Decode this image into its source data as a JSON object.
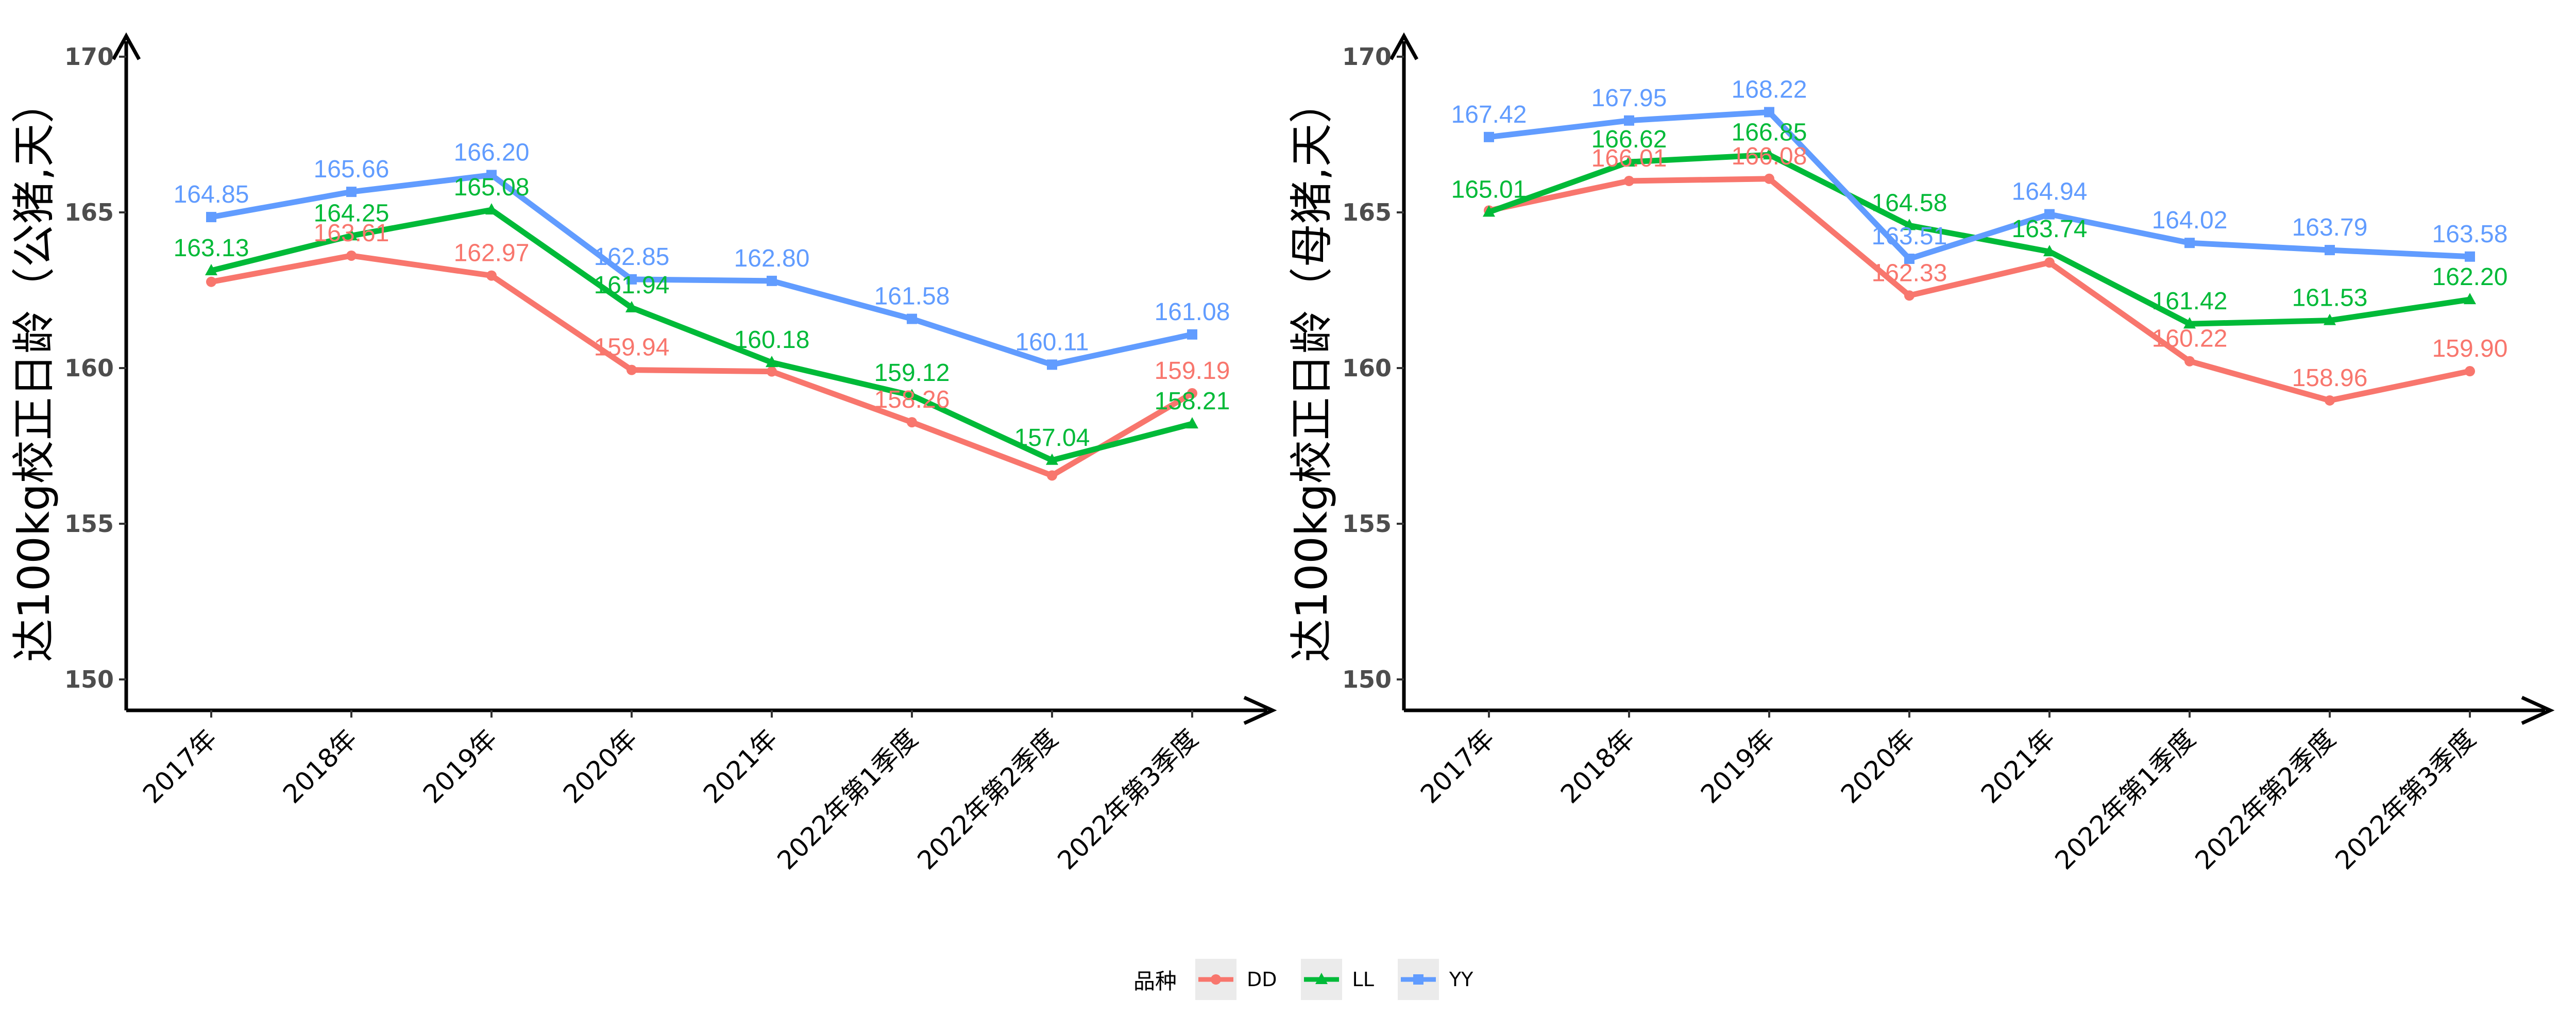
{
  "chart_data": [
    {
      "type": "line",
      "ylabel": "达100kg校正日龄（公猪,天）",
      "xlabel": "",
      "categories": [
        "2017年",
        "2018年",
        "2019年",
        "2020年",
        "2021年",
        "2022年第1季度",
        "2022年第2季度",
        "2022年第3季度"
      ],
      "ylim": [
        149,
        171
      ],
      "yticks": [
        150,
        155,
        160,
        165,
        170
      ],
      "series": [
        {
          "name": "DD",
          "values": [
            162.77,
            163.61,
            162.97,
            159.94,
            159.89,
            158.26,
            156.55,
            159.19
          ],
          "labels": [
            "",
            "163.61",
            "162.97",
            "159.94",
            "",
            "158.26",
            "",
            "159.19"
          ]
        },
        {
          "name": "LL",
          "values": [
            163.13,
            164.25,
            165.08,
            161.94,
            160.18,
            159.12,
            157.04,
            158.21
          ],
          "labels": [
            "163.13",
            "164.25",
            "165.08",
            "161.94",
            "160.18",
            "159.12",
            "157.04",
            "158.21"
          ]
        },
        {
          "name": "YY",
          "values": [
            164.85,
            165.66,
            166.2,
            162.85,
            162.8,
            161.58,
            160.11,
            161.08
          ],
          "labels": [
            "164.85",
            "165.66",
            "166.20",
            "162.85",
            "162.80",
            "161.58",
            "160.11",
            "161.08"
          ]
        }
      ]
    },
    {
      "type": "line",
      "ylabel": "达100kg校正日龄（母猪,天）",
      "xlabel": "",
      "categories": [
        "2017年",
        "2018年",
        "2019年",
        "2020年",
        "2021年",
        "2022年第1季度",
        "2022年第2季度",
        "2022年第3季度"
      ],
      "ylim": [
        149,
        171
      ],
      "yticks": [
        150,
        155,
        160,
        165,
        170
      ],
      "series": [
        {
          "name": "DD",
          "values": [
            165.06,
            166.01,
            166.08,
            162.33,
            163.39,
            160.22,
            158.96,
            159.9
          ],
          "labels": [
            "",
            "166.01",
            "166.08",
            "162.33",
            "",
            "160.22",
            "158.96",
            "159.90"
          ]
        },
        {
          "name": "LL",
          "values": [
            165.01,
            166.62,
            166.85,
            164.58,
            163.74,
            161.42,
            161.53,
            162.2
          ],
          "labels": [
            "165.01",
            "166.62",
            "166.85",
            "164.58",
            "163.74",
            "161.42",
            "161.53",
            "162.20"
          ]
        },
        {
          "name": "YY",
          "values": [
            167.42,
            167.95,
            168.22,
            163.51,
            164.94,
            164.02,
            163.79,
            163.58
          ],
          "labels": [
            "167.42",
            "167.95",
            "168.22",
            "163.51",
            "164.94",
            "164.02",
            "163.79",
            "163.58"
          ]
        }
      ]
    }
  ],
  "legend": {
    "title": "品种",
    "placement": "bottom",
    "items": [
      {
        "name": "DD",
        "color": "#F8766D",
        "shape": "circle"
      },
      {
        "name": "LL",
        "color": "#00BA38",
        "shape": "triangle"
      },
      {
        "name": "YY",
        "color": "#619CFF",
        "shape": "square"
      }
    ]
  },
  "colors": {
    "DD": "#F8766D",
    "LL": "#00BA38",
    "YY": "#619CFF"
  }
}
